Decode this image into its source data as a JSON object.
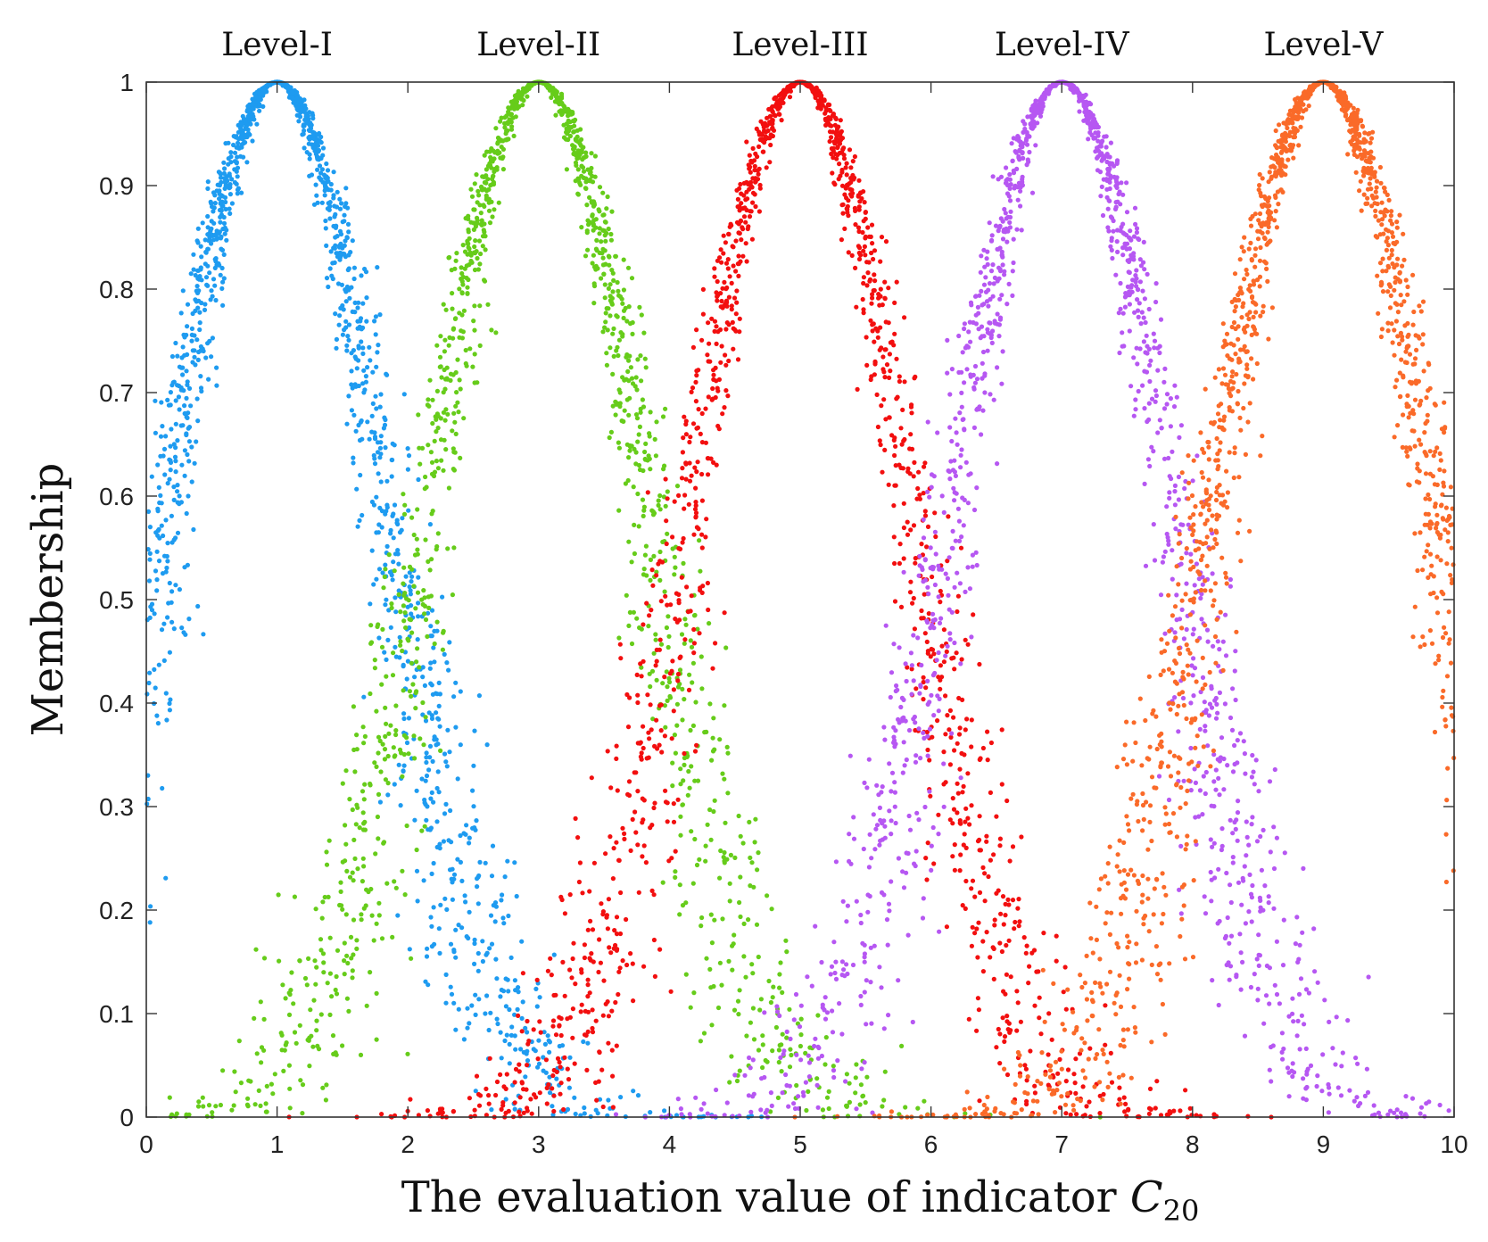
{
  "chart_data": {
    "type": "scatter",
    "title": "",
    "xlabel": "The evaluation value of indicator ",
    "xlabel_symbol": "C",
    "xlabel_subscript": "20",
    "ylabel": "Membership",
    "xlim": [
      0,
      10
    ],
    "ylim": [
      0,
      1
    ],
    "x_ticks": [
      0,
      1,
      2,
      3,
      4,
      5,
      6,
      7,
      8,
      9,
      10
    ],
    "x_tick_labels": [
      "0",
      "1",
      "2",
      "3",
      "4",
      "5",
      "6",
      "7",
      "8",
      "9",
      "10"
    ],
    "y_ticks": [
      0,
      0.1,
      0.2,
      0.3,
      0.4,
      0.5,
      0.6,
      0.7,
      0.8,
      0.9,
      1
    ],
    "y_tick_labels": [
      "0",
      "0.1",
      "0.2",
      "0.3",
      "0.4",
      "0.5",
      "0.6",
      "0.7",
      "0.8",
      "0.9",
      "1"
    ],
    "grid": false,
    "series": [
      {
        "name": "Level-I",
        "center": 1,
        "spread": 1.0,
        "color": "#1e9bf0",
        "points": 1500
      },
      {
        "name": "Level-II",
        "center": 3,
        "spread": 1.0,
        "color": "#66cc1a",
        "points": 1500
      },
      {
        "name": "Level-III",
        "center": 5,
        "spread": 1.0,
        "color": "#f20f0f",
        "points": 1500
      },
      {
        "name": "Level-IV",
        "center": 7,
        "spread": 1.0,
        "color": "#b657f2",
        "points": 1500
      },
      {
        "name": "Level-V",
        "center": 9,
        "spread": 1.0,
        "color": "#fa6a29",
        "points": 1500
      }
    ]
  }
}
